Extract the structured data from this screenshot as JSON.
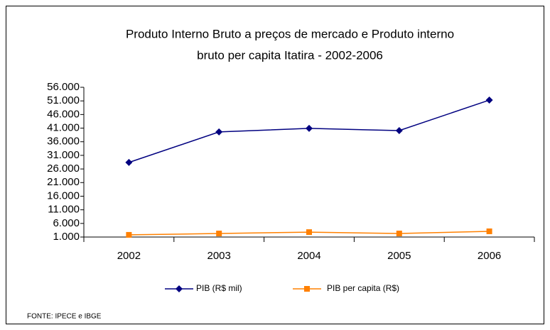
{
  "chart_data": {
    "type": "line",
    "title": [
      "Produto Interno Bruto a preços de mercado  e   Produto interno",
      "bruto per capita Itatira - 2002-2006"
    ],
    "categories": [
      "2002",
      "2003",
      "2004",
      "2005",
      "2006"
    ],
    "series": [
      {
        "name": "PIB (R$ mil)",
        "color": "#000080",
        "marker": "diamond",
        "values": [
          28400,
          39600,
          40900,
          40100,
          51300
        ]
      },
      {
        "name": "PIB per capita (R$)",
        "color": "#ff8000",
        "marker": "square",
        "values": [
          1800,
          2300,
          2800,
          2300,
          3100
        ]
      }
    ],
    "ylim": [
      1000,
      56000
    ],
    "yticks": [
      {
        "value": 1000,
        "label": "1.000"
      },
      {
        "value": 6000,
        "label": "6.000"
      },
      {
        "value": 11000,
        "label": "11.000"
      },
      {
        "value": 16000,
        "label": "16.000"
      },
      {
        "value": 21000,
        "label": "21.000"
      },
      {
        "value": 26000,
        "label": "26.000"
      },
      {
        "value": 31000,
        "label": "31.000"
      },
      {
        "value": 36000,
        "label": "36.000"
      },
      {
        "value": 41000,
        "label": "41.000"
      },
      {
        "value": 46000,
        "label": "46.000"
      },
      {
        "value": 51000,
        "label": "51.000"
      },
      {
        "value": 56000,
        "label": "56.000"
      }
    ],
    "grid": false,
    "legend": "bottom",
    "source": "FONTE: IPECE e IBGE"
  }
}
